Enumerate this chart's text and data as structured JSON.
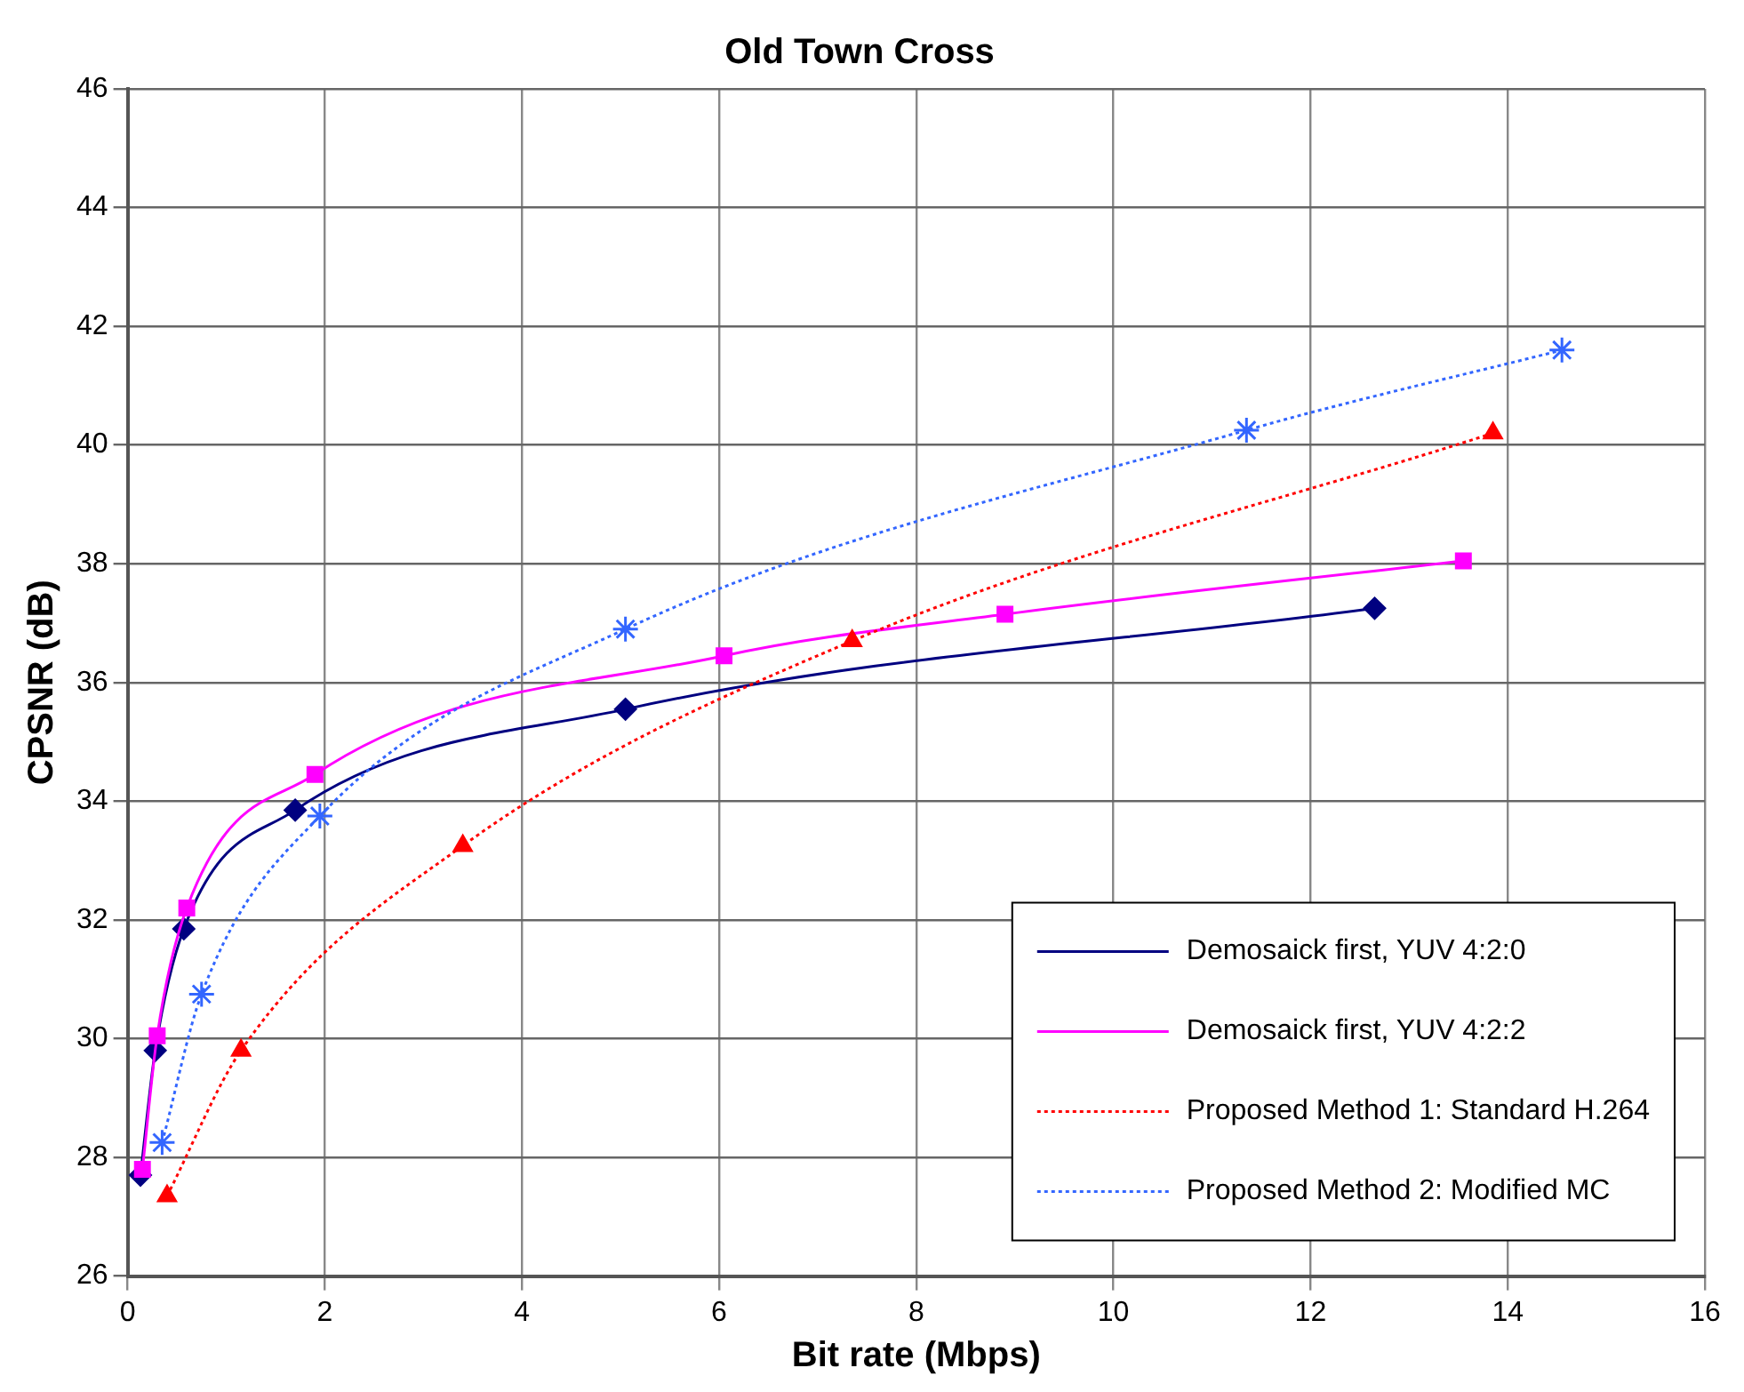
{
  "chart_data": {
    "type": "line",
    "title": "Old Town Cross",
    "xlabel": "Bit rate (Mbps)",
    "ylabel": "CPSNR (dB)",
    "xlim": [
      0,
      16
    ],
    "xticks": [
      0,
      2,
      4,
      6,
      8,
      10,
      12,
      14,
      16
    ],
    "ylim": [
      26,
      46
    ],
    "yticks": [
      26,
      28,
      30,
      32,
      34,
      36,
      38,
      40,
      42,
      44,
      46
    ],
    "grid": true,
    "legend": "bottom right",
    "series": [
      {
        "name": "Demosaick first, YUV 4:2:0",
        "color": "#000080",
        "marker": "diamond",
        "line_style": "solid",
        "x": [
          0.13,
          0.28,
          0.57,
          1.7,
          5.05,
          12.65
        ],
        "values": [
          27.7,
          29.8,
          31.85,
          33.85,
          35.55,
          37.25
        ]
      },
      {
        "name": "Demosaick first, YUV 4:2:2",
        "color": "#ff00ff",
        "marker": "square",
        "line_style": "solid",
        "x": [
          0.15,
          0.3,
          0.6,
          1.9,
          6.05,
          8.9,
          13.55
        ],
        "values": [
          27.8,
          30.05,
          32.2,
          34.45,
          36.45,
          37.15,
          38.05
        ]
      },
      {
        "name": "Proposed Method 1: Standard H.264",
        "color": "#ff0000",
        "marker": "triangle",
        "line_style": "dotted",
        "x": [
          0.4,
          1.15,
          3.4,
          7.35,
          13.85
        ],
        "values": [
          27.35,
          29.8,
          33.25,
          36.7,
          40.2
        ]
      },
      {
        "name": "Proposed Method 2: Modified MC",
        "color": "#3366ff",
        "marker": "cross",
        "line_style": "dotted",
        "x": [
          0.35,
          0.75,
          1.95,
          5.05,
          11.35,
          14.55
        ],
        "values": [
          28.25,
          30.75,
          33.75,
          36.9,
          40.25,
          41.6
        ]
      }
    ]
  }
}
